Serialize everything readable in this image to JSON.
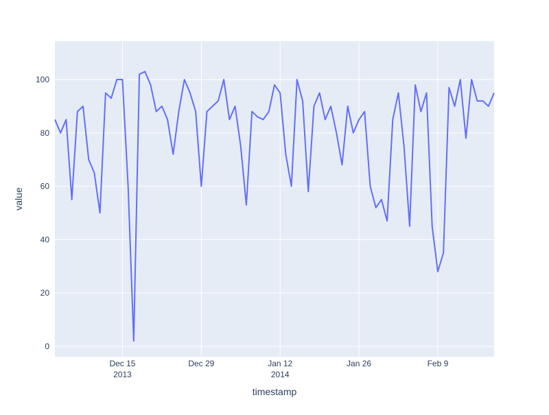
{
  "chart_data": {
    "type": "line",
    "x_label": "timestamp",
    "y_label": "value",
    "x": [
      "2013-12-03",
      "2013-12-04",
      "2013-12-05",
      "2013-12-06",
      "2013-12-07",
      "2013-12-08",
      "2013-12-09",
      "2013-12-10",
      "2013-12-11",
      "2013-12-12",
      "2013-12-13",
      "2013-12-14",
      "2013-12-15",
      "2013-12-16",
      "2013-12-17",
      "2013-12-18",
      "2013-12-19",
      "2013-12-20",
      "2013-12-21",
      "2013-12-22",
      "2013-12-23",
      "2013-12-24",
      "2013-12-25",
      "2013-12-26",
      "2013-12-27",
      "2013-12-28",
      "2013-12-29",
      "2013-12-30",
      "2013-12-31",
      "2014-01-01",
      "2014-01-02",
      "2014-01-03",
      "2014-01-04",
      "2014-01-05",
      "2014-01-06",
      "2014-01-07",
      "2014-01-08",
      "2014-01-09",
      "2014-01-10",
      "2014-01-11",
      "2014-01-12",
      "2014-01-13",
      "2014-01-14",
      "2014-01-15",
      "2014-01-16",
      "2014-01-17",
      "2014-01-18",
      "2014-01-19",
      "2014-01-20",
      "2014-01-21",
      "2014-01-22",
      "2014-01-23",
      "2014-01-24",
      "2014-01-25",
      "2014-01-26",
      "2014-01-27",
      "2014-01-28",
      "2014-01-29",
      "2014-01-30",
      "2014-01-31",
      "2014-02-01",
      "2014-02-02",
      "2014-02-03",
      "2014-02-04",
      "2014-02-05",
      "2014-02-06",
      "2014-02-07",
      "2014-02-08",
      "2014-02-09",
      "2014-02-10",
      "2014-02-11",
      "2014-02-12",
      "2014-02-13",
      "2014-02-14",
      "2014-02-15",
      "2014-02-16",
      "2014-02-17",
      "2014-02-18",
      "2014-02-19"
    ],
    "series": [
      {
        "color": "#636efa",
        "values": [
          85,
          80,
          85,
          55,
          88,
          90,
          70,
          65,
          50,
          95,
          93,
          100,
          100,
          60,
          2,
          102,
          103,
          98,
          88,
          90,
          85,
          72,
          88,
          100,
          95,
          88,
          60,
          88,
          90,
          92,
          100,
          85,
          90,
          75,
          53,
          88,
          86,
          85,
          88,
          98,
          95,
          72,
          60,
          100,
          92,
          58,
          90,
          95,
          85,
          90,
          80,
          68,
          90,
          80,
          85,
          88,
          60,
          52,
          55,
          47,
          85,
          95,
          75,
          45,
          98,
          88,
          95,
          45,
          28,
          35,
          97,
          90,
          100,
          78,
          100,
          92,
          92,
          90,
          95
        ]
      }
    ],
    "xlim": [
      "2013-12-03",
      "2014-02-19"
    ],
    "xticks": [
      {
        "value": "2013-12-15",
        "label": "Dec 15\n2013"
      },
      {
        "value": "2013-12-29",
        "label": "Dec 29"
      },
      {
        "value": "2014-01-12",
        "label": "Jan 12\n2014"
      },
      {
        "value": "2014-01-26",
        "label": "Jan 26"
      },
      {
        "value": "2014-02-09",
        "label": "Feb 9"
      }
    ],
    "ylim": [
      -3.9,
      114.4
    ],
    "yticks": [
      0,
      20,
      40,
      60,
      80,
      100
    ],
    "grid": true,
    "background": "#e5ecf6"
  }
}
